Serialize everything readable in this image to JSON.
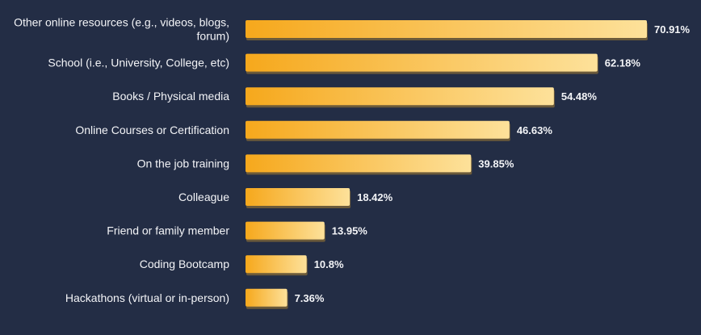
{
  "colors": {
    "background": "#232d45",
    "bar_start": "#f6a81c",
    "bar_end": "#fde19a",
    "bar_shadow": "#6b5a3a",
    "text": "#f3f4f7"
  },
  "chart_data": {
    "type": "bar",
    "orientation": "horizontal",
    "categories": [
      [
        "Other online resources (e.g., videos, blogs,",
        "forum)"
      ],
      [
        "School (i.e., University, College, etc)"
      ],
      [
        "Books / Physical media"
      ],
      [
        "Online Courses or Certification"
      ],
      [
        "On the job training"
      ],
      [
        "Colleague"
      ],
      [
        "Friend or family member"
      ],
      [
        "Coding Bootcamp"
      ],
      [
        "Hackathons (virtual or in-person)"
      ]
    ],
    "values": [
      70.91,
      62.18,
      54.48,
      46.63,
      39.85,
      18.42,
      13.95,
      10.8,
      7.36
    ],
    "value_labels": [
      "70.91%",
      "62.18%",
      "54.48%",
      "46.63%",
      "39.85%",
      "18.42%",
      "13.95%",
      "10.8%",
      "7.36%"
    ],
    "xlim": [
      0,
      70.91
    ],
    "grid": false,
    "legend": "none"
  }
}
